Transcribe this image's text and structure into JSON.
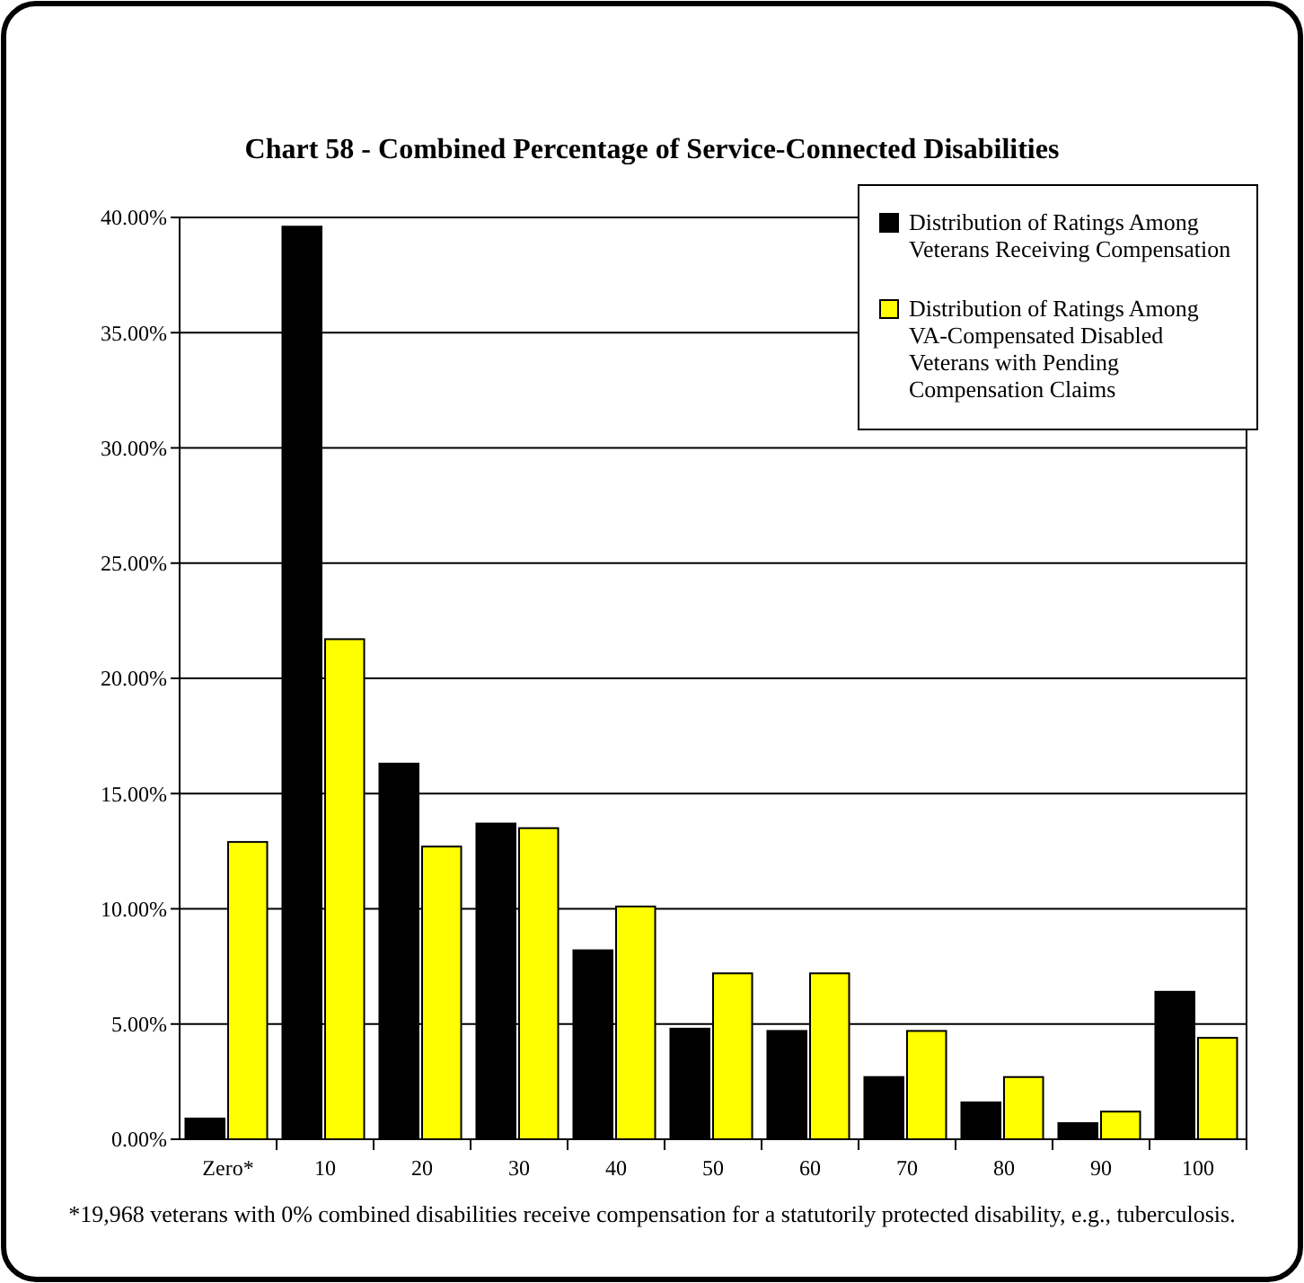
{
  "chart_data": {
    "type": "bar",
    "title": "Chart 58 - Combined Percentage of Service-Connected Disabilities",
    "categories": [
      "Zero*",
      "10",
      "20",
      "30",
      "40",
      "50",
      "60",
      "70",
      "80",
      "90",
      "100"
    ],
    "series": [
      {
        "name": "Distribution of Ratings Among Veterans Receiving Compensation",
        "color": "#000000",
        "values": [
          0.9,
          39.6,
          16.3,
          13.7,
          8.2,
          4.8,
          4.7,
          2.7,
          1.6,
          0.7,
          6.4
        ]
      },
      {
        "name": "Distribution of Ratings Among VA-Compensated Disabled Veterans with Pending Compensation Claims",
        "color": "#ffff00",
        "values": [
          12.9,
          21.7,
          12.7,
          13.5,
          10.1,
          7.2,
          7.2,
          4.7,
          2.7,
          1.2,
          4.4
        ]
      }
    ],
    "ylim": [
      0,
      40
    ],
    "yticks": [
      {
        "value": 0,
        "label": "0.00%"
      },
      {
        "value": 5,
        "label": "5.00%"
      },
      {
        "value": 10,
        "label": "10.00%"
      },
      {
        "value": 15,
        "label": "15.00%"
      },
      {
        "value": 20,
        "label": "20.00%"
      },
      {
        "value": 25,
        "label": "25.00%"
      },
      {
        "value": 30,
        "label": "30.00%"
      },
      {
        "value": 35,
        "label": "35.00%"
      },
      {
        "value": 40,
        "label": "40.00%"
      }
    ],
    "grid": "y",
    "legend": "top right",
    "annotations": [
      "*19,968 veterans with 0% combined disabilities receive compensation for a statutorily protected disability, e.g., tuberculosis."
    ]
  }
}
